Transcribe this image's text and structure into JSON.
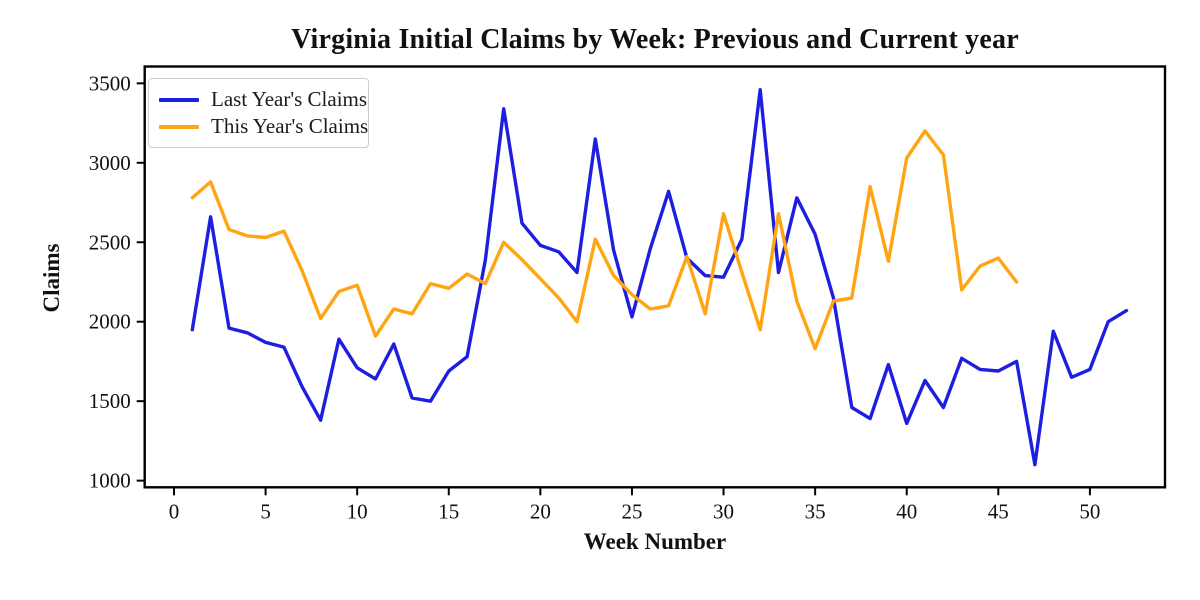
{
  "chart_data": {
    "type": "line",
    "title": "Virginia Initial Claims by Week: Previous and Current year",
    "xlabel": "Week Number",
    "ylabel": "Claims",
    "x_ticks": [
      0,
      5,
      10,
      15,
      20,
      25,
      30,
      35,
      40,
      45,
      50
    ],
    "y_ticks": [
      1000,
      1500,
      2000,
      2500,
      3000,
      3500
    ],
    "xlim": [
      -1.6,
      54.1
    ],
    "ylim": [
      958,
      3606
    ],
    "grid": false,
    "legend_position": "upper-left",
    "background_color": "#ffffff",
    "spine_color": "#000000",
    "series": [
      {
        "name": "Last Year's Claims",
        "color": "#1e1ee1",
        "weeks": [
          1,
          2,
          3,
          4,
          5,
          6,
          7,
          8,
          9,
          10,
          11,
          12,
          13,
          14,
          15,
          16,
          17,
          18,
          19,
          20,
          21,
          22,
          23,
          24,
          25,
          26,
          27,
          28,
          29,
          30,
          31,
          32,
          33,
          34,
          35,
          36,
          37,
          38,
          39,
          40,
          41,
          42,
          43,
          44,
          45,
          46,
          47,
          48,
          49,
          50,
          51,
          52
        ],
        "values": [
          1950,
          2660,
          1960,
          1930,
          1870,
          1840,
          1590,
          1380,
          1890,
          1710,
          1640,
          1860,
          1520,
          1500,
          1690,
          1780,
          2390,
          3340,
          2620,
          2480,
          2440,
          2310,
          3150,
          2450,
          2030,
          2460,
          2820,
          2400,
          2290,
          2280,
          2520,
          3460,
          2310,
          2780,
          2550,
          2150,
          1460,
          1390,
          1730,
          1360,
          1630,
          1460,
          1770,
          1700,
          1690,
          1750,
          1100,
          1940,
          1650,
          1700,
          2000,
          2070
        ]
      },
      {
        "name": "This Year's Claims",
        "color": "#ffa514",
        "weeks": [
          1,
          2,
          3,
          4,
          5,
          6,
          7,
          8,
          9,
          10,
          11,
          12,
          13,
          14,
          15,
          16,
          17,
          18,
          19,
          20,
          21,
          22,
          23,
          24,
          25,
          26,
          27,
          28,
          29,
          30,
          31,
          32,
          33,
          34,
          35,
          36,
          37,
          38,
          39,
          40,
          41,
          42,
          43,
          44,
          45,
          46
        ],
        "values": [
          2780,
          2880,
          2580,
          2540,
          2530,
          2570,
          2320,
          2020,
          2190,
          2230,
          1910,
          2080,
          2050,
          2240,
          2210,
          2300,
          2240,
          2500,
          2390,
          2270,
          2150,
          2000,
          2520,
          2290,
          2170,
          2080,
          2100,
          2410,
          2050,
          2680,
          2310,
          1950,
          2680,
          2130,
          1830,
          2130,
          2150,
          2850,
          2380,
          3030,
          3200,
          3050,
          2200,
          2350,
          2400,
          2250
        ]
      }
    ]
  }
}
